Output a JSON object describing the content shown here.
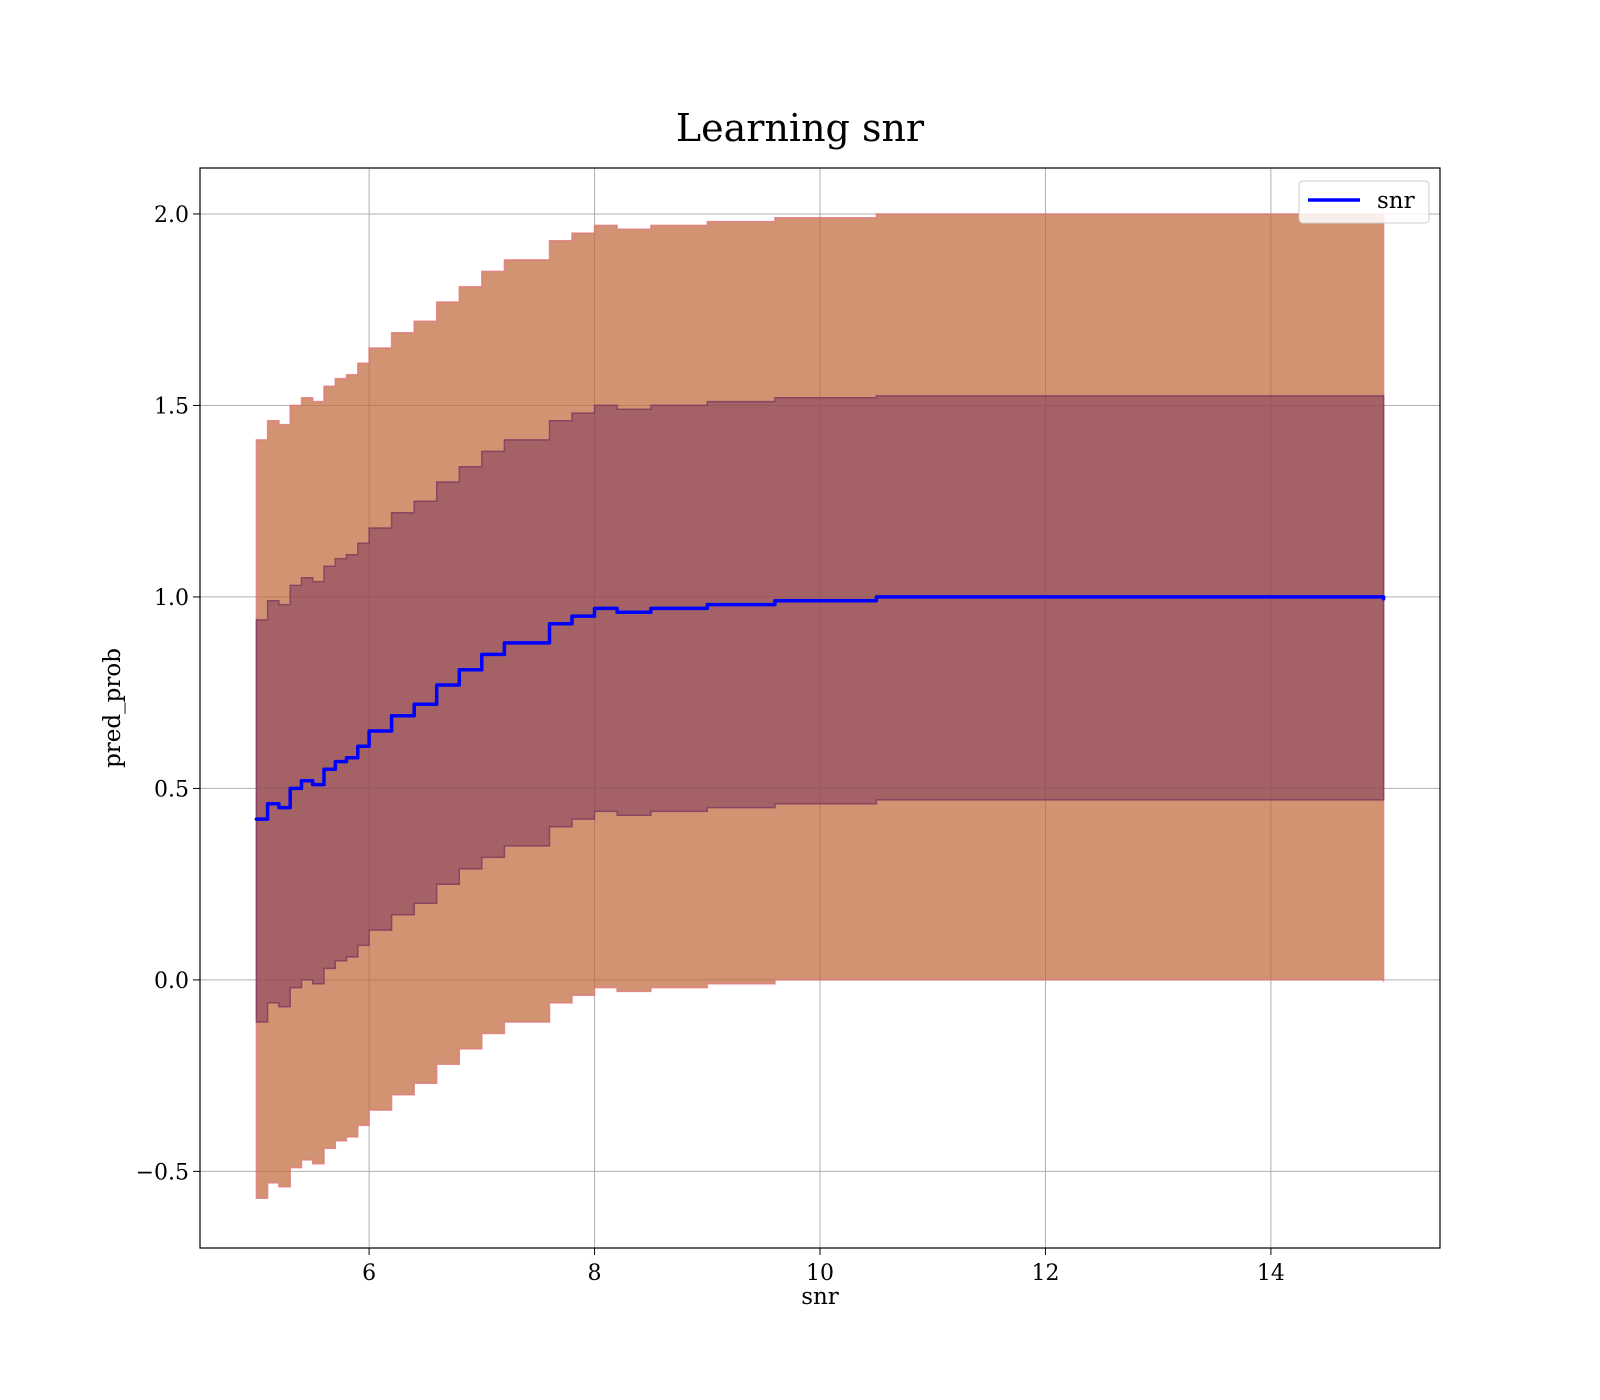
{
  "chart_data": {
    "type": "line",
    "title": "Learning snr",
    "xlabel": "snr",
    "ylabel": "pred_prob",
    "xlim": [
      4.5,
      15.5
    ],
    "ylim": [
      -0.7,
      2.12
    ],
    "xticks": [
      6,
      8,
      10,
      12,
      14
    ],
    "yticks": [
      -0.5,
      0.0,
      0.5,
      1.0,
      1.5,
      2.0
    ],
    "xtick_labels": [
      "6",
      "8",
      "10",
      "12",
      "14"
    ],
    "ytick_labels": [
      "−0.5",
      "0.0",
      "0.5",
      "1.0",
      "1.5",
      "2.0"
    ],
    "grid": true,
    "legend_position": "top-right",
    "series": [
      {
        "name": "snr",
        "color": "#0000ff",
        "x": [
          5.0,
          5.1,
          5.2,
          5.3,
          5.4,
          5.5,
          5.6,
          5.7,
          5.8,
          5.9,
          6.0,
          6.2,
          6.4,
          6.6,
          6.8,
          7.0,
          7.2,
          7.4,
          7.6,
          7.8,
          8.0,
          8.2,
          8.5,
          8.8,
          9.0,
          9.3,
          9.6,
          10.0,
          10.5,
          11.0,
          12.0,
          13.0,
          14.0,
          15.0
        ],
        "y": [
          0.42,
          0.46,
          0.45,
          0.5,
          0.52,
          0.51,
          0.55,
          0.57,
          0.58,
          0.61,
          0.65,
          0.69,
          0.72,
          0.77,
          0.81,
          0.85,
          0.88,
          0.88,
          0.93,
          0.95,
          0.97,
          0.96,
          0.97,
          0.97,
          0.98,
          0.98,
          0.99,
          0.99,
          1.0,
          1.0,
          1.0,
          1.0,
          1.0,
          0.995
        ]
      }
    ],
    "bands": [
      {
        "color": "#c06a3c",
        "edge_color": "#e0787a",
        "opacity": 0.72,
        "x": [
          5.0,
          5.1,
          5.2,
          5.3,
          5.4,
          5.5,
          5.6,
          5.7,
          5.8,
          5.9,
          6.0,
          6.2,
          6.4,
          6.6,
          6.8,
          7.0,
          7.2,
          7.4,
          7.6,
          7.8,
          8.0,
          8.2,
          8.5,
          8.8,
          9.0,
          9.3,
          9.6,
          10.0,
          10.5,
          11.0,
          12.0,
          13.0,
          14.0,
          15.0
        ],
        "upper": [
          1.41,
          1.46,
          1.45,
          1.5,
          1.52,
          1.51,
          1.55,
          1.57,
          1.58,
          1.61,
          1.65,
          1.69,
          1.72,
          1.77,
          1.81,
          1.85,
          1.88,
          1.88,
          1.93,
          1.95,
          1.97,
          1.96,
          1.97,
          1.97,
          1.98,
          1.98,
          1.99,
          1.99,
          2.0,
          2.0,
          2.0,
          2.0,
          2.0,
          1.995
        ],
        "lower": [
          -0.57,
          -0.53,
          -0.54,
          -0.49,
          -0.47,
          -0.48,
          -0.44,
          -0.42,
          -0.41,
          -0.38,
          -0.34,
          -0.3,
          -0.27,
          -0.22,
          -0.18,
          -0.14,
          -0.11,
          -0.11,
          -0.06,
          -0.04,
          -0.02,
          -0.03,
          -0.02,
          -0.02,
          -0.01,
          -0.01,
          0.0,
          0.0,
          0.0,
          0.0,
          0.0,
          0.0,
          0.0,
          -0.005
        ]
      },
      {
        "color": "#7d3a5e",
        "edge_color": "#7d3a5e",
        "opacity": 0.55,
        "x": [
          5.0,
          5.1,
          5.2,
          5.3,
          5.4,
          5.5,
          5.6,
          5.7,
          5.8,
          5.9,
          6.0,
          6.2,
          6.4,
          6.6,
          6.8,
          7.0,
          7.2,
          7.4,
          7.6,
          7.8,
          8.0,
          8.2,
          8.5,
          8.8,
          9.0,
          9.3,
          9.6,
          10.0,
          10.5,
          11.0,
          12.0,
          13.0,
          14.0,
          15.0
        ],
        "upper": [
          0.94,
          0.99,
          0.98,
          1.03,
          1.05,
          1.04,
          1.08,
          1.1,
          1.11,
          1.14,
          1.18,
          1.22,
          1.25,
          1.3,
          1.34,
          1.38,
          1.41,
          1.41,
          1.46,
          1.48,
          1.5,
          1.49,
          1.5,
          1.5,
          1.51,
          1.51,
          1.52,
          1.52,
          1.525,
          1.525,
          1.525,
          1.525,
          1.525,
          1.52
        ],
        "lower": [
          -0.11,
          -0.06,
          -0.07,
          -0.02,
          0.0,
          -0.01,
          0.03,
          0.05,
          0.06,
          0.09,
          0.13,
          0.17,
          0.2,
          0.25,
          0.29,
          0.32,
          0.35,
          0.35,
          0.4,
          0.42,
          0.44,
          0.43,
          0.44,
          0.44,
          0.45,
          0.45,
          0.46,
          0.46,
          0.47,
          0.47,
          0.47,
          0.47,
          0.47,
          0.47
        ]
      }
    ]
  }
}
